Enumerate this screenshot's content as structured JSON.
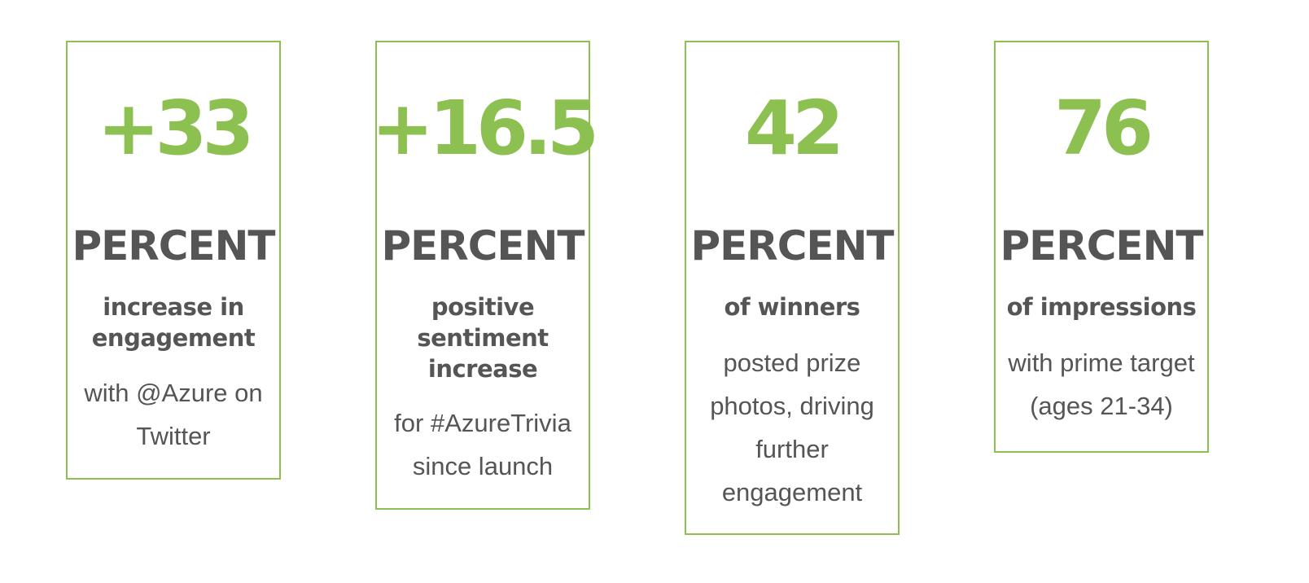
{
  "colors": {
    "accent_green": "#8cc152",
    "text_gray": "#555555",
    "background": "#ffffff"
  },
  "stats": [
    {
      "number": "+33",
      "unit": "PERCENT",
      "headline": "increase in engagement",
      "description": "with @Azure on Twitter"
    },
    {
      "number": "+16.5",
      "unit": "PERCENT",
      "headline": "positive sentiment increase",
      "description": "for #AzureTrivia since launch"
    },
    {
      "number": "42",
      "unit": "PERCENT",
      "headline": "of winners",
      "description": "posted prize photos, driving further engagement"
    },
    {
      "number": "76",
      "unit": "PERCENT",
      "headline": "of impressions",
      "description": "with prime target (ages 21-34)"
    }
  ]
}
